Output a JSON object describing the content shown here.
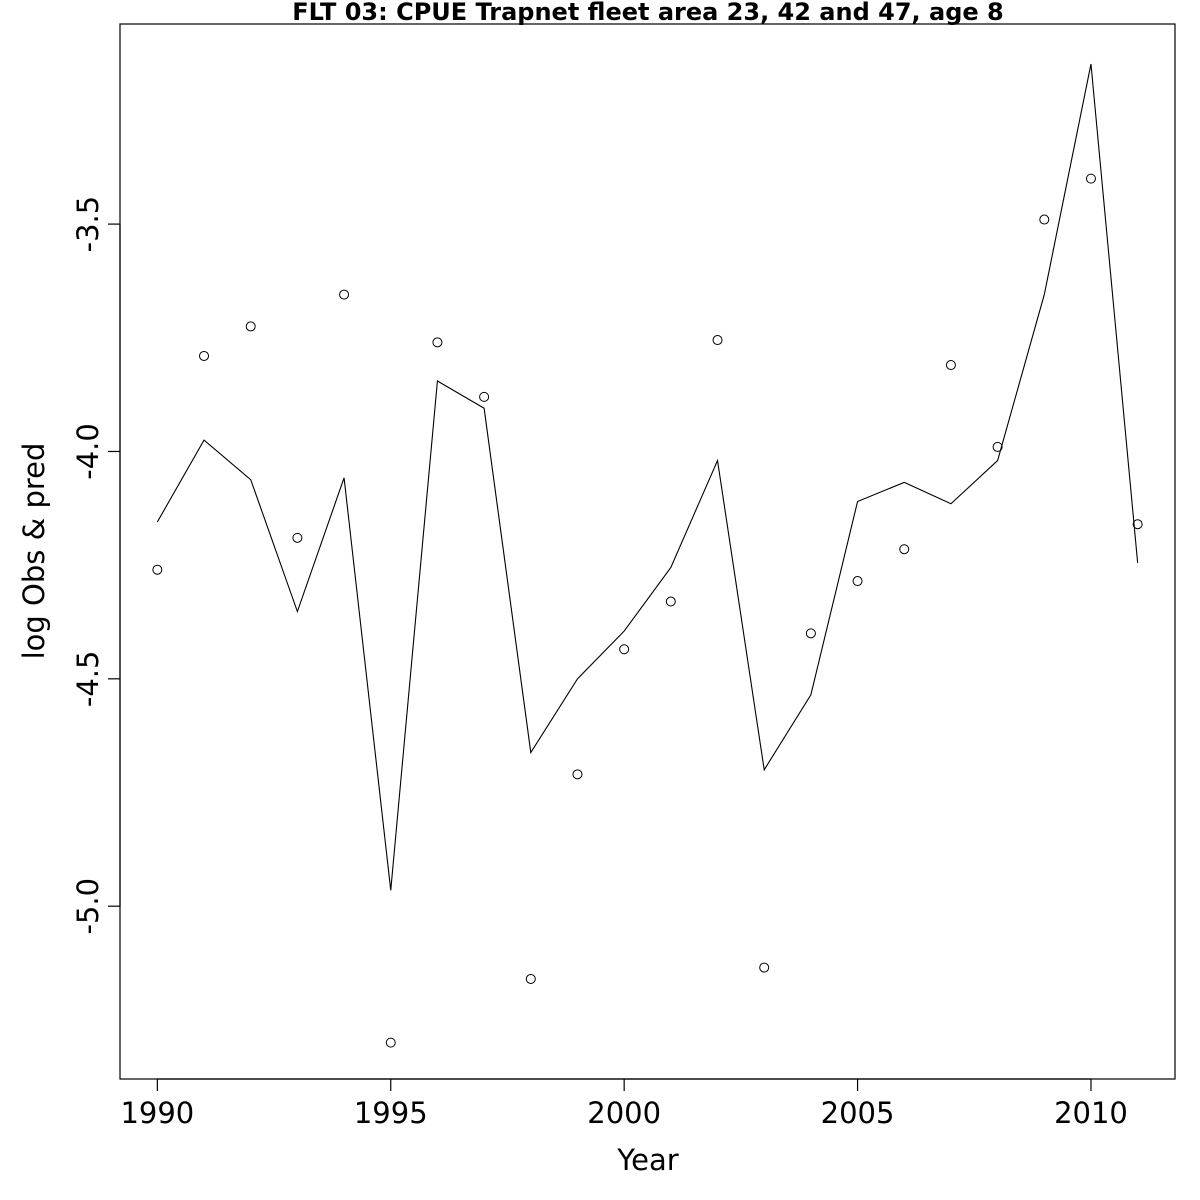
{
  "chart_data": {
    "type": "line",
    "title": "FLT 03: CPUE Trapnet fleet area 23, 42 and 47, age 8",
    "xlabel": "Year",
    "ylabel": "log Obs & pred",
    "xlim": [
      1989.2,
      2011.8
    ],
    "ylim": [
      -5.38,
      -3.06
    ],
    "x_ticks": [
      1990,
      1995,
      2000,
      2005,
      2010
    ],
    "x_tick_labels": [
      "1990",
      "1995",
      "2000",
      "2005",
      "2010"
    ],
    "y_ticks": [
      -5.0,
      -4.5,
      -4.0,
      -3.5
    ],
    "y_tick_labels": [
      "-5.0",
      "-4.5",
      "-4.0",
      "-3.5"
    ],
    "grid": false,
    "legend": "none",
    "series": [
      {
        "style": "points",
        "x": [
          1990,
          1991,
          1992,
          1993,
          1994,
          1995,
          1996,
          1997,
          1998,
          1999,
          2000,
          2001,
          2002,
          2003,
          2004,
          2005,
          2006,
          2007,
          2008,
          2009,
          2010,
          2011
        ],
        "values": [
          -4.26,
          -3.79,
          -3.725,
          -4.19,
          -3.655,
          -5.3,
          -3.76,
          -3.88,
          -5.16,
          -4.71,
          -4.435,
          -4.33,
          -3.755,
          -5.135,
          -4.4,
          -4.285,
          -4.215,
          -3.81,
          -3.99,
          -3.49,
          -3.4,
          -4.16
        ]
      },
      {
        "style": "line",
        "x": [
          1990,
          1991,
          1992,
          1993,
          1994,
          1995,
          1996,
          1997,
          1998,
          1999,
          2000,
          2001,
          2002,
          2003,
          2004,
          2005,
          2006,
          2007,
          2008,
          2009,
          2010,
          2011
        ],
        "values": [
          -4.155,
          -3.975,
          -4.062,
          -4.352,
          -4.058,
          -4.965,
          -3.845,
          -3.905,
          -4.662,
          -4.5,
          -4.395,
          -4.255,
          -4.02,
          -4.7,
          -4.535,
          -4.11,
          -4.068,
          -4.115,
          -4.02,
          -3.655,
          -3.148,
          -4.245
        ]
      }
    ]
  }
}
